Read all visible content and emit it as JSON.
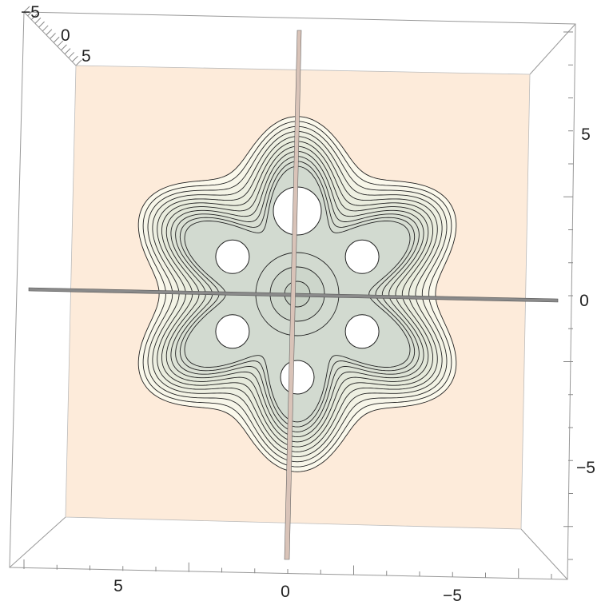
{
  "chart_data": {
    "type": "contour3d",
    "title": "",
    "xlabel": "",
    "ylabel": "",
    "zlabel": "",
    "view": "top-down perspective box",
    "bottom_axis": {
      "ticks": [
        5,
        0,
        -5
      ],
      "labels": [
        "5",
        "0",
        "−5"
      ],
      "range": [
        8,
        -8
      ]
    },
    "right_axis": {
      "ticks": [
        5,
        0,
        -5
      ],
      "labels": [
        "5",
        "0",
        "−5"
      ],
      "range": [
        -8,
        8
      ]
    },
    "top_left_axis": {
      "ticks": [
        -5,
        0,
        5
      ],
      "labels": [
        "−5",
        "0",
        "5"
      ]
    },
    "surface": {
      "shape": "six-lobed star",
      "lobes": 6,
      "contour_levels": 11,
      "inner_rings": 3,
      "holes": [
        {
          "angle_deg": 90,
          "r": 4.0
        },
        {
          "angle_deg": 150,
          "r": 3.6
        },
        {
          "angle_deg": 30,
          "r": 3.6
        },
        {
          "angle_deg": 210,
          "r": 3.6
        },
        {
          "angle_deg": 330,
          "r": 3.6
        },
        {
          "angle_deg": 270,
          "r": 4.0
        }
      ]
    },
    "planes": [
      "horizontal plane through y = 0",
      "vertical plane through x = 0"
    ],
    "colors": {
      "base": "#FDEBDA",
      "outer": "#FBF9EC",
      "mid": "#E6EADB",
      "inner": "#D2DAD0",
      "plane": "#D9C3B8",
      "box": "#999999"
    }
  }
}
